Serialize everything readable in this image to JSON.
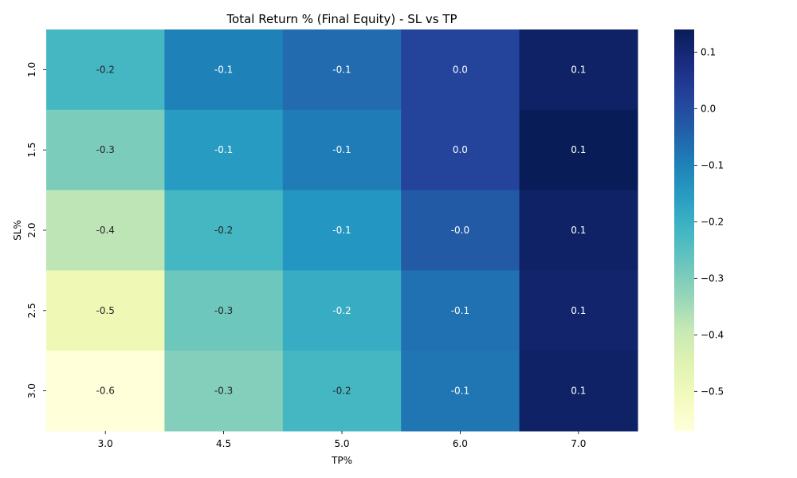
{
  "chart_data": {
    "type": "heatmap",
    "title": "Total Return % (Final Equity) - SL vs TP",
    "xlabel": "TP%",
    "ylabel": "SL%",
    "x_categories": [
      "3.0",
      "4.5",
      "5.0",
      "6.0",
      "7.0"
    ],
    "y_categories": [
      "1.0",
      "1.5",
      "2.0",
      "2.5",
      "3.0"
    ],
    "values": [
      [
        -0.22,
        -0.1,
        -0.06,
        0.02,
        0.12
      ],
      [
        -0.3,
        -0.15,
        -0.09,
        0.02,
        0.14
      ],
      [
        -0.38,
        -0.22,
        -0.14,
        -0.03,
        0.12
      ],
      [
        -0.49,
        -0.28,
        -0.19,
        -0.07,
        0.11
      ],
      [
        -0.57,
        -0.31,
        -0.22,
        -0.08,
        0.12
      ]
    ],
    "annotations": [
      [
        "-0.2",
        "-0.1",
        "-0.1",
        "0.0",
        "0.1"
      ],
      [
        "-0.3",
        "-0.1",
        "-0.1",
        "0.0",
        "0.1"
      ],
      [
        "-0.4",
        "-0.2",
        "-0.1",
        "-0.0",
        "0.1"
      ],
      [
        "-0.5",
        "-0.3",
        "-0.2",
        "-0.1",
        "0.1"
      ],
      [
        "-0.6",
        "-0.3",
        "-0.2",
        "-0.1",
        "0.1"
      ]
    ],
    "colormap": "YlGnBu",
    "colorbar": {
      "vmin": -0.57,
      "vmax": 0.14,
      "ticks": [
        0.1,
        0.0,
        -0.1,
        -0.2,
        -0.3,
        -0.4,
        -0.5
      ],
      "tick_labels": [
        "0.1",
        "0.0",
        "−0.1",
        "−0.2",
        "−0.3",
        "−0.4",
        "−0.5"
      ]
    }
  }
}
